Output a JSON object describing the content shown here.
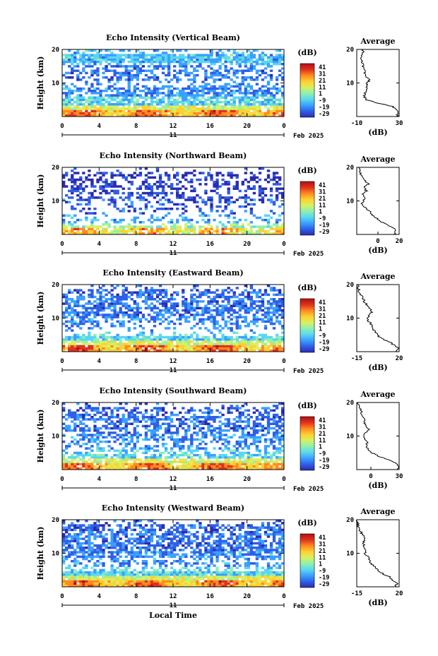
{
  "figure": {
    "xlabel": "Local Time",
    "date_label": "Feb 2025",
    "day_label": "11",
    "colorbar_unit": "(dB)",
    "colorbar_ticks": [
      "41",
      "31",
      "21",
      "11",
      "1",
      "-9",
      "-19",
      "-29"
    ]
  },
  "colors": {
    "scale": [
      "#2b2bb0",
      "#2f5fe6",
      "#3aa0ff",
      "#5ad7f0",
      "#8ef0b0",
      "#d8f060",
      "#ffd030",
      "#ff8a20",
      "#e03020",
      "#b01010"
    ]
  },
  "chart_data": [
    {
      "type": "heatmap",
      "title": "Echo Intensity (Vertical Beam)",
      "xlabel": "",
      "ylabel": "Height (km)",
      "xlim": [
        0,
        24
      ],
      "ylim": [
        0,
        20
      ],
      "xticks": [
        "0",
        "4",
        "8",
        "12",
        "16",
        "20",
        "0"
      ],
      "yticks": [
        "20",
        "10"
      ],
      "value_range_db": [
        -29,
        41
      ],
      "profile": {
        "title": "Average",
        "xlabel": "(dB)",
        "xlim": [
          -10,
          30
        ],
        "xticks": [
          "-10",
          "30"
        ],
        "heights_km": [
          0,
          1,
          2,
          3,
          4,
          5,
          6,
          7,
          8,
          9,
          10,
          11,
          12,
          13,
          14,
          15,
          16,
          17,
          18,
          19,
          20
        ],
        "values_db": [
          28,
          29,
          27,
          24,
          10,
          -1,
          -3,
          -2,
          0,
          -1,
          0,
          2,
          -1,
          -3,
          -2,
          -4,
          -5,
          -6,
          -5,
          -4,
          -4
        ]
      }
    },
    {
      "type": "heatmap",
      "title": "Echo Intensity (Northward Beam)",
      "xlabel": "",
      "ylabel": "Height (km)",
      "xlim": [
        0,
        24
      ],
      "ylim": [
        0,
        20
      ],
      "xticks": [
        "0",
        "4",
        "8",
        "12",
        "16",
        "20",
        "0"
      ],
      "yticks": [
        "20",
        "10"
      ],
      "value_range_db": [
        -29,
        41
      ],
      "profile": {
        "title": "Average",
        "xlabel": "(dB)",
        "xlim": [
          -20,
          20
        ],
        "xticks": [
          "0",
          "20"
        ],
        "heights_km": [
          0,
          1,
          2,
          3,
          4,
          5,
          6,
          7,
          8,
          9,
          10,
          11,
          12,
          13,
          14,
          15,
          16,
          17,
          18,
          19,
          20
        ],
        "values_db": [
          15,
          17,
          14,
          8,
          2,
          -2,
          -6,
          -8,
          -12,
          -15,
          -14,
          -12,
          -15,
          -11,
          -13,
          -9,
          -12,
          -15,
          -16,
          -17,
          -18
        ]
      }
    },
    {
      "type": "heatmap",
      "title": "Echo Intensity (Eastward Beam)",
      "xlabel": "",
      "ylabel": "Height (km)",
      "xlim": [
        0,
        24
      ],
      "ylim": [
        0,
        20
      ],
      "xticks": [
        "0",
        "4",
        "8",
        "12",
        "16",
        "20",
        "0"
      ],
      "yticks": [
        "20",
        "10"
      ],
      "value_range_db": [
        -29,
        41
      ],
      "profile": {
        "title": "Average",
        "xlabel": "(dB)",
        "xlim": [
          -15,
          20
        ],
        "xticks": [
          "-15",
          "20"
        ],
        "heights_km": [
          0,
          1,
          2,
          3,
          4,
          5,
          6,
          7,
          8,
          9,
          10,
          11,
          12,
          13,
          14,
          15,
          16,
          17,
          18,
          19,
          20
        ],
        "values_db": [
          18,
          19,
          16,
          11,
          5,
          2,
          0,
          -2,
          -3,
          -5,
          -6,
          -4,
          -2,
          -5,
          -7,
          -9,
          -10,
          -12,
          -13,
          -14,
          -14
        ]
      }
    },
    {
      "type": "heatmap",
      "title": "Echo Intensity (Southward Beam)",
      "xlabel": "",
      "ylabel": "Height (km)",
      "xlim": [
        0,
        24
      ],
      "ylim": [
        0,
        20
      ],
      "xticks": [
        "0",
        "4",
        "8",
        "12",
        "16",
        "20",
        "0"
      ],
      "yticks": [
        "20",
        "10"
      ],
      "value_range_db": [
        -29,
        41
      ],
      "profile": {
        "title": "Average",
        "xlabel": "(dB)",
        "xlim": [
          -15,
          30
        ],
        "xticks": [
          "0",
          "30"
        ],
        "heights_km": [
          0,
          1,
          2,
          3,
          4,
          5,
          6,
          7,
          8,
          9,
          10,
          11,
          12,
          13,
          14,
          15,
          16,
          17,
          18,
          19,
          20
        ],
        "values_db": [
          28,
          29,
          26,
          18,
          8,
          1,
          -3,
          -5,
          -4,
          -6,
          -8,
          -6,
          -2,
          -5,
          -7,
          -6,
          -9,
          -10,
          -11,
          -13,
          -14
        ]
      }
    },
    {
      "type": "heatmap",
      "title": "Echo Intensity (Westward Beam)",
      "xlabel": "Local Time",
      "ylabel": "Height (km)",
      "xlim": [
        0,
        24
      ],
      "ylim": [
        0,
        20
      ],
      "xticks": [
        "0",
        "4",
        "8",
        "12",
        "16",
        "20",
        "0"
      ],
      "yticks": [
        "20",
        "10"
      ],
      "value_range_db": [
        -29,
        41
      ],
      "profile": {
        "title": "Average",
        "xlabel": "(dB)",
        "xlim": [
          -15,
          20
        ],
        "xticks": [
          "-15",
          "20"
        ],
        "heights_km": [
          0,
          1,
          2,
          3,
          4,
          5,
          6,
          7,
          8,
          9,
          10,
          11,
          12,
          13,
          14,
          15,
          16,
          17,
          18,
          19,
          20
        ],
        "values_db": [
          17,
          18,
          15,
          12,
          6,
          2,
          0,
          -3,
          -5,
          -6,
          -8,
          -7,
          -9,
          -10,
          -9,
          -8,
          -11,
          -13,
          -14,
          -14,
          -15
        ]
      }
    }
  ]
}
